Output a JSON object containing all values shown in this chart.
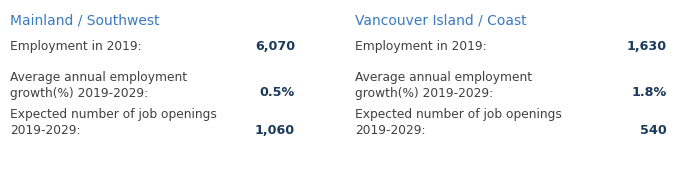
{
  "bg_color": "#ffffff",
  "title_color": "#3a7abf",
  "label_color": "#404040",
  "value_color": "#1a3a5c",
  "left_title": "Mainland / Southwest",
  "right_title": "Vancouver Island / Coast",
  "left_rows": [
    {
      "line1": "Employment in 2019:",
      "line2": null,
      "value": "6,070"
    },
    {
      "line1": "Average annual employment",
      "line2": "growth(%) 2019-2029:",
      "value": "0.5%"
    },
    {
      "line1": "Expected number of job openings",
      "line2": "2019-2029:",
      "value": "1,060"
    }
  ],
  "right_rows": [
    {
      "line1": "Employment in 2019:",
      "line2": null,
      "value": "1,630"
    },
    {
      "line1": "Average annual employment",
      "line2": "growth(%) 2019-2029:",
      "value": "1.8%"
    },
    {
      "line1": "Expected number of job openings",
      "line2": "2019-2029:",
      "value": "540"
    }
  ],
  "title_fontsize": 10.0,
  "label_fontsize": 8.8,
  "value_fontsize": 9.2,
  "fig_width": 6.87,
  "fig_height": 1.76,
  "dpi": 100
}
